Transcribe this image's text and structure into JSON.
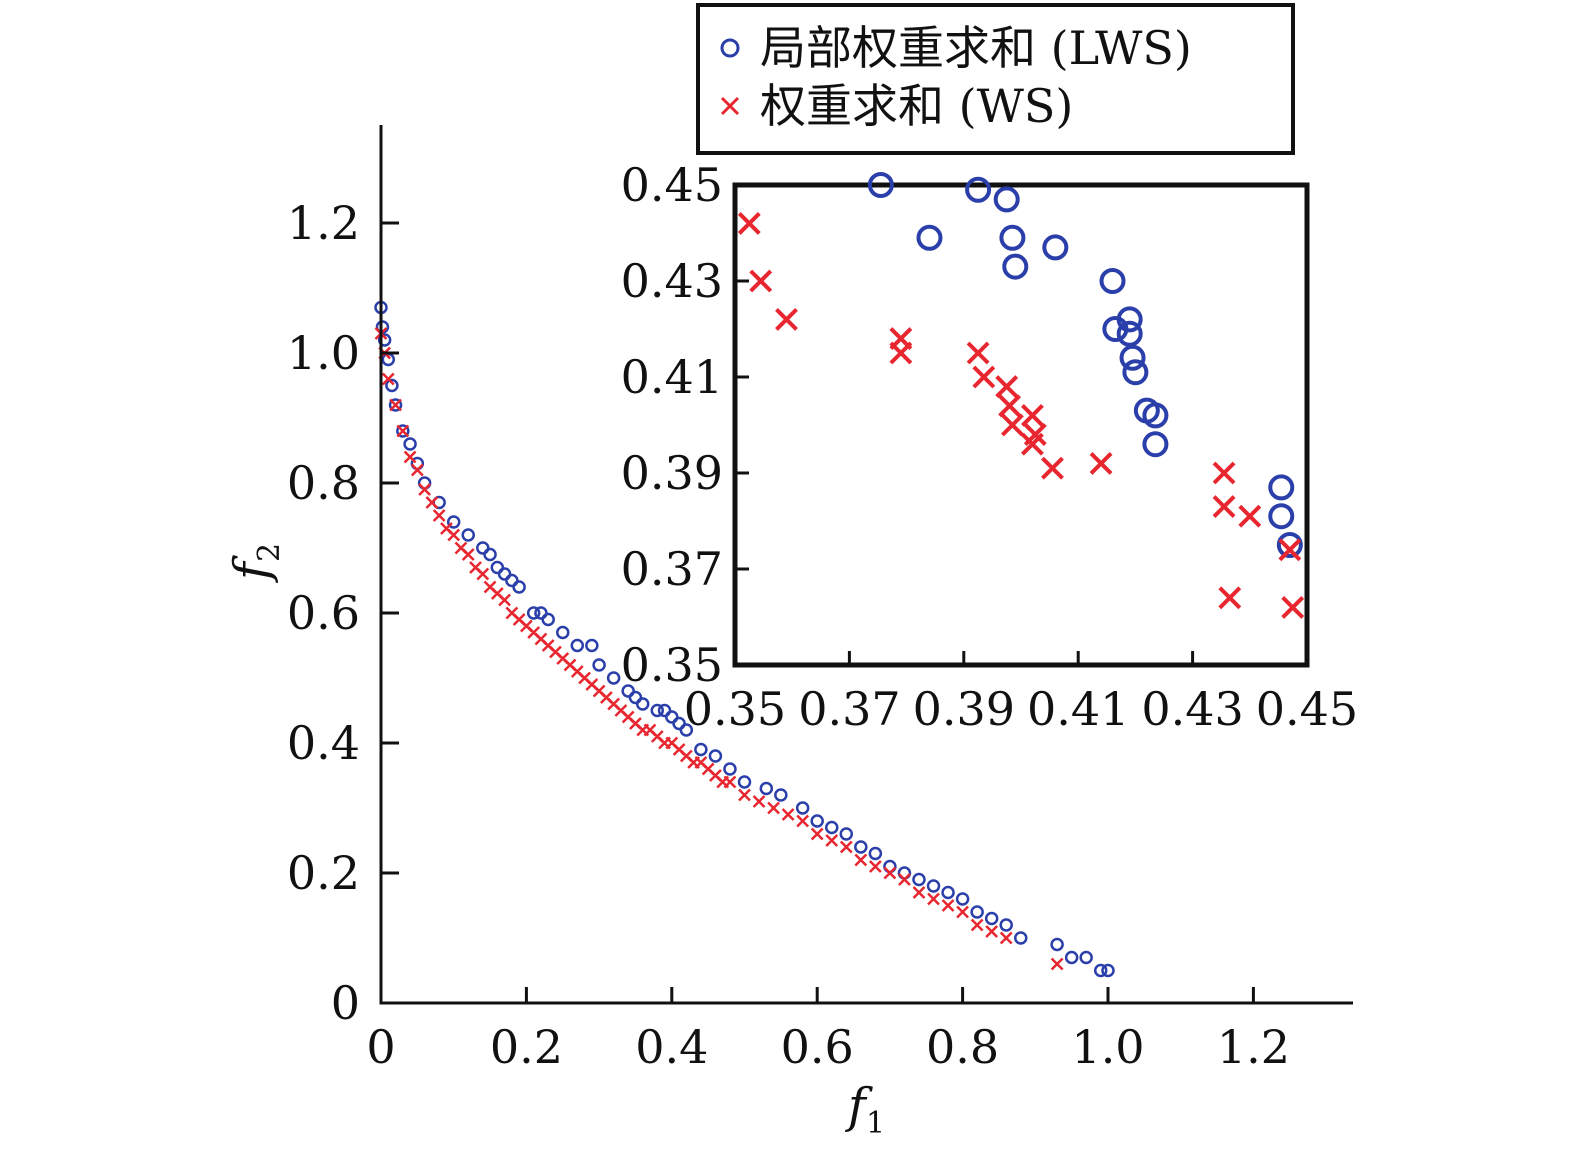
{
  "chart_data": [
    {
      "type": "scatter",
      "xlabel": "f",
      "xlabel_sub": "1",
      "ylabel": "f",
      "ylabel_sub": "2",
      "xlim": [
        0,
        1.3
      ],
      "ylim": [
        0,
        1.3
      ],
      "xticks": [
        0,
        0.2,
        0.4,
        0.6,
        0.8,
        1.0,
        1.2
      ],
      "xtick_labels": [
        "0",
        "0.2",
        "0.4",
        "0.6",
        "0.8",
        "1.0",
        "1.2"
      ],
      "yticks": [
        0,
        0.2,
        0.4,
        0.6,
        0.8,
        1.0,
        1.2
      ],
      "ytick_labels": [
        "0",
        "0.2",
        "0.4",
        "0.6",
        "0.8",
        "1.0",
        "1.2"
      ],
      "legend_position": "top",
      "series": [
        {
          "name": "局部权重求和 (LWS)",
          "marker": "circle",
          "color": "#2b3faa",
          "x": [
            0.0,
            0.002,
            0.005,
            0.01,
            0.015,
            0.02,
            0.03,
            0.04,
            0.05,
            0.06,
            0.08,
            0.1,
            0.12,
            0.14,
            0.15,
            0.16,
            0.17,
            0.18,
            0.19,
            0.21,
            0.22,
            0.23,
            0.25,
            0.27,
            0.29,
            0.3,
            0.32,
            0.34,
            0.35,
            0.36,
            0.38,
            0.39,
            0.4,
            0.41,
            0.42,
            0.44,
            0.46,
            0.48,
            0.5,
            0.53,
            0.55,
            0.58,
            0.6,
            0.62,
            0.64,
            0.66,
            0.68,
            0.7,
            0.72,
            0.74,
            0.76,
            0.78,
            0.8,
            0.82,
            0.84,
            0.86,
            0.88,
            0.93,
            0.95,
            0.97,
            0.99,
            1.0
          ],
          "y": [
            1.07,
            1.04,
            1.02,
            0.99,
            0.95,
            0.92,
            0.88,
            0.86,
            0.83,
            0.8,
            0.77,
            0.74,
            0.72,
            0.7,
            0.69,
            0.67,
            0.66,
            0.65,
            0.64,
            0.6,
            0.6,
            0.59,
            0.57,
            0.55,
            0.55,
            0.52,
            0.5,
            0.48,
            0.47,
            0.46,
            0.45,
            0.45,
            0.44,
            0.43,
            0.42,
            0.39,
            0.38,
            0.36,
            0.34,
            0.33,
            0.32,
            0.3,
            0.28,
            0.27,
            0.26,
            0.24,
            0.23,
            0.21,
            0.2,
            0.19,
            0.18,
            0.17,
            0.16,
            0.14,
            0.13,
            0.12,
            0.1,
            0.09,
            0.07,
            0.07,
            0.05,
            0.05
          ]
        },
        {
          "name": "权重求和 (WS)",
          "marker": "x",
          "color": "#e8262f",
          "x": [
            0.0,
            0.005,
            0.01,
            0.02,
            0.03,
            0.04,
            0.05,
            0.06,
            0.07,
            0.08,
            0.09,
            0.1,
            0.11,
            0.12,
            0.13,
            0.14,
            0.15,
            0.16,
            0.17,
            0.18,
            0.19,
            0.2,
            0.21,
            0.22,
            0.23,
            0.24,
            0.25,
            0.26,
            0.27,
            0.28,
            0.29,
            0.3,
            0.31,
            0.32,
            0.33,
            0.34,
            0.35,
            0.36,
            0.37,
            0.38,
            0.39,
            0.4,
            0.41,
            0.42,
            0.43,
            0.44,
            0.45,
            0.46,
            0.47,
            0.48,
            0.5,
            0.52,
            0.54,
            0.56,
            0.58,
            0.6,
            0.62,
            0.64,
            0.66,
            0.68,
            0.7,
            0.72,
            0.74,
            0.76,
            0.78,
            0.8,
            0.82,
            0.84,
            0.86,
            0.93
          ],
          "y": [
            1.03,
            1.0,
            0.96,
            0.92,
            0.88,
            0.84,
            0.82,
            0.79,
            0.77,
            0.75,
            0.73,
            0.72,
            0.7,
            0.69,
            0.67,
            0.66,
            0.64,
            0.63,
            0.62,
            0.6,
            0.59,
            0.58,
            0.57,
            0.56,
            0.55,
            0.54,
            0.53,
            0.52,
            0.51,
            0.5,
            0.49,
            0.48,
            0.47,
            0.46,
            0.45,
            0.44,
            0.43,
            0.42,
            0.42,
            0.41,
            0.4,
            0.4,
            0.39,
            0.38,
            0.37,
            0.37,
            0.36,
            0.35,
            0.34,
            0.34,
            0.32,
            0.31,
            0.3,
            0.29,
            0.28,
            0.26,
            0.25,
            0.24,
            0.22,
            0.21,
            0.2,
            0.19,
            0.17,
            0.16,
            0.15,
            0.14,
            0.12,
            0.11,
            0.1,
            0.06
          ]
        }
      ]
    },
    {
      "type": "scatter",
      "xlim": [
        0.35,
        0.45
      ],
      "ylim": [
        0.35,
        0.45
      ],
      "xticks": [
        0.35,
        0.37,
        0.39,
        0.41,
        0.43,
        0.45
      ],
      "xtick_labels": [
        "0.35",
        "0.37",
        "0.39",
        "0.41",
        "0.43",
        "0.45"
      ],
      "yticks": [
        0.35,
        0.37,
        0.39,
        0.41,
        0.43,
        0.45
      ],
      "ytick_labels": [
        "0.35",
        "0.37",
        "0.39",
        "0.41",
        "0.43",
        "0.45"
      ],
      "series": [
        {
          "name": "局部权重求和 (LWS)",
          "marker": "circle",
          "color": "#2b3faa",
          "x": [
            0.3755,
            0.384,
            0.3925,
            0.3975,
            0.3985,
            0.399,
            0.406,
            0.416,
            0.4165,
            0.419,
            0.419,
            0.4195,
            0.42,
            0.422,
            0.4235,
            0.4235,
            0.4455,
            0.4455,
            0.447
          ],
          "y": [
            0.45,
            0.439,
            0.449,
            0.447,
            0.439,
            0.433,
            0.437,
            0.43,
            0.42,
            0.422,
            0.419,
            0.414,
            0.411,
            0.403,
            0.402,
            0.396,
            0.387,
            0.381,
            0.375
          ]
        },
        {
          "name": "权重求和 (WS)",
          "marker": "x",
          "color": "#e8262f",
          "x": [
            0.3525,
            0.3545,
            0.359,
            0.379,
            0.379,
            0.3925,
            0.3935,
            0.3975,
            0.398,
            0.3985,
            0.402,
            0.4025,
            0.402,
            0.4055,
            0.414,
            0.4355,
            0.4355,
            0.44,
            0.4365,
            0.447,
            0.4475
          ],
          "y": [
            0.442,
            0.43,
            0.422,
            0.418,
            0.415,
            0.415,
            0.41,
            0.408,
            0.404,
            0.4,
            0.402,
            0.398,
            0.396,
            0.391,
            0.392,
            0.39,
            0.383,
            0.381,
            0.364,
            0.374,
            0.362
          ]
        }
      ]
    }
  ],
  "legend": {
    "entries": [
      {
        "label": "局部权重求和 (LWS)",
        "marker": "circle",
        "color": "#2b3faa"
      },
      {
        "label": "权重求和 (WS)",
        "marker": "x",
        "color": "#e8262f"
      }
    ]
  }
}
